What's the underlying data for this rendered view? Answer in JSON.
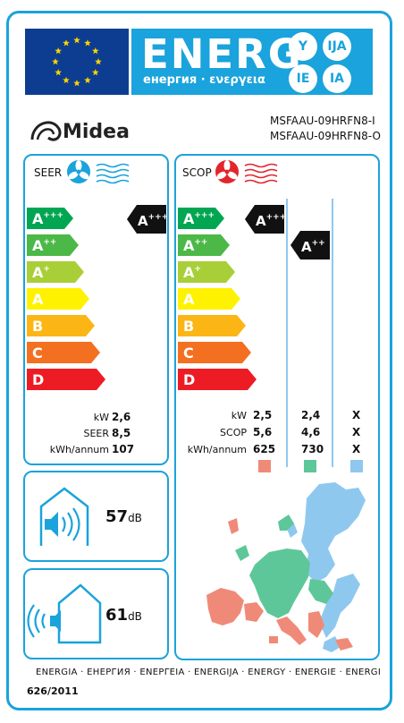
{
  "header": {
    "energy_word": "ENERG",
    "energy_subtitle": "енергия · ενεργεια",
    "lang_badges": [
      "Y",
      "IJA",
      "IE",
      "IA"
    ],
    "flag_colors": {
      "background": "#0d3d91",
      "stars": "#ffd400"
    }
  },
  "brand": {
    "logo_text": "Midea",
    "model_indoor": "MSFAAU-09HRFN8-I",
    "model_outdoor": "MSFAAU-09HRFN8-O"
  },
  "classes": [
    {
      "label": "A",
      "sup": "+++",
      "color": "#00a651"
    },
    {
      "label": "A",
      "sup": "++",
      "color": "#4cb848"
    },
    {
      "label": "A",
      "sup": "+",
      "color": "#a8cf38"
    },
    {
      "label": "A",
      "sup": "",
      "color": "#fff200"
    },
    {
      "label": "B",
      "sup": "",
      "color": "#fbb616"
    },
    {
      "label": "C",
      "sup": "",
      "color": "#f37021"
    },
    {
      "label": "D",
      "sup": "",
      "color": "#ed1c24"
    }
  ],
  "cooling": {
    "title": "SEER",
    "rating": {
      "label": "A",
      "sup": "+++"
    },
    "rows": [
      {
        "label": "kW",
        "value": "2,6"
      },
      {
        "label": "SEER",
        "value": "8,5"
      },
      {
        "label": "kWh/annum",
        "value": "107"
      }
    ]
  },
  "heating": {
    "title": "SCOP",
    "ratings": [
      {
        "label": "A",
        "sup": "+++"
      },
      {
        "label": "A",
        "sup": "++"
      }
    ],
    "rows": [
      {
        "label": "kW",
        "values": [
          "2,5",
          "2,4",
          "X"
        ]
      },
      {
        "label": "SCOP",
        "values": [
          "5,6",
          "4,6",
          "X"
        ]
      },
      {
        "label": "kWh/annum",
        "values": [
          "625",
          "730",
          "X"
        ]
      }
    ],
    "zone_colors": [
      "#f08a78",
      "#5ec79a",
      "#8fc8ef"
    ]
  },
  "noise": {
    "indoor": {
      "value": "57",
      "unit": "dB"
    },
    "outdoor": {
      "value": "61",
      "unit": "dB"
    }
  },
  "footer": {
    "languages": "ENERGIA · ЕНЕРГИЯ · ΕΝΕΡΓΕΙΑ · ENERGIJA · ENERGY · ENERGIE · ENERGI",
    "regulation": "626/2011"
  }
}
